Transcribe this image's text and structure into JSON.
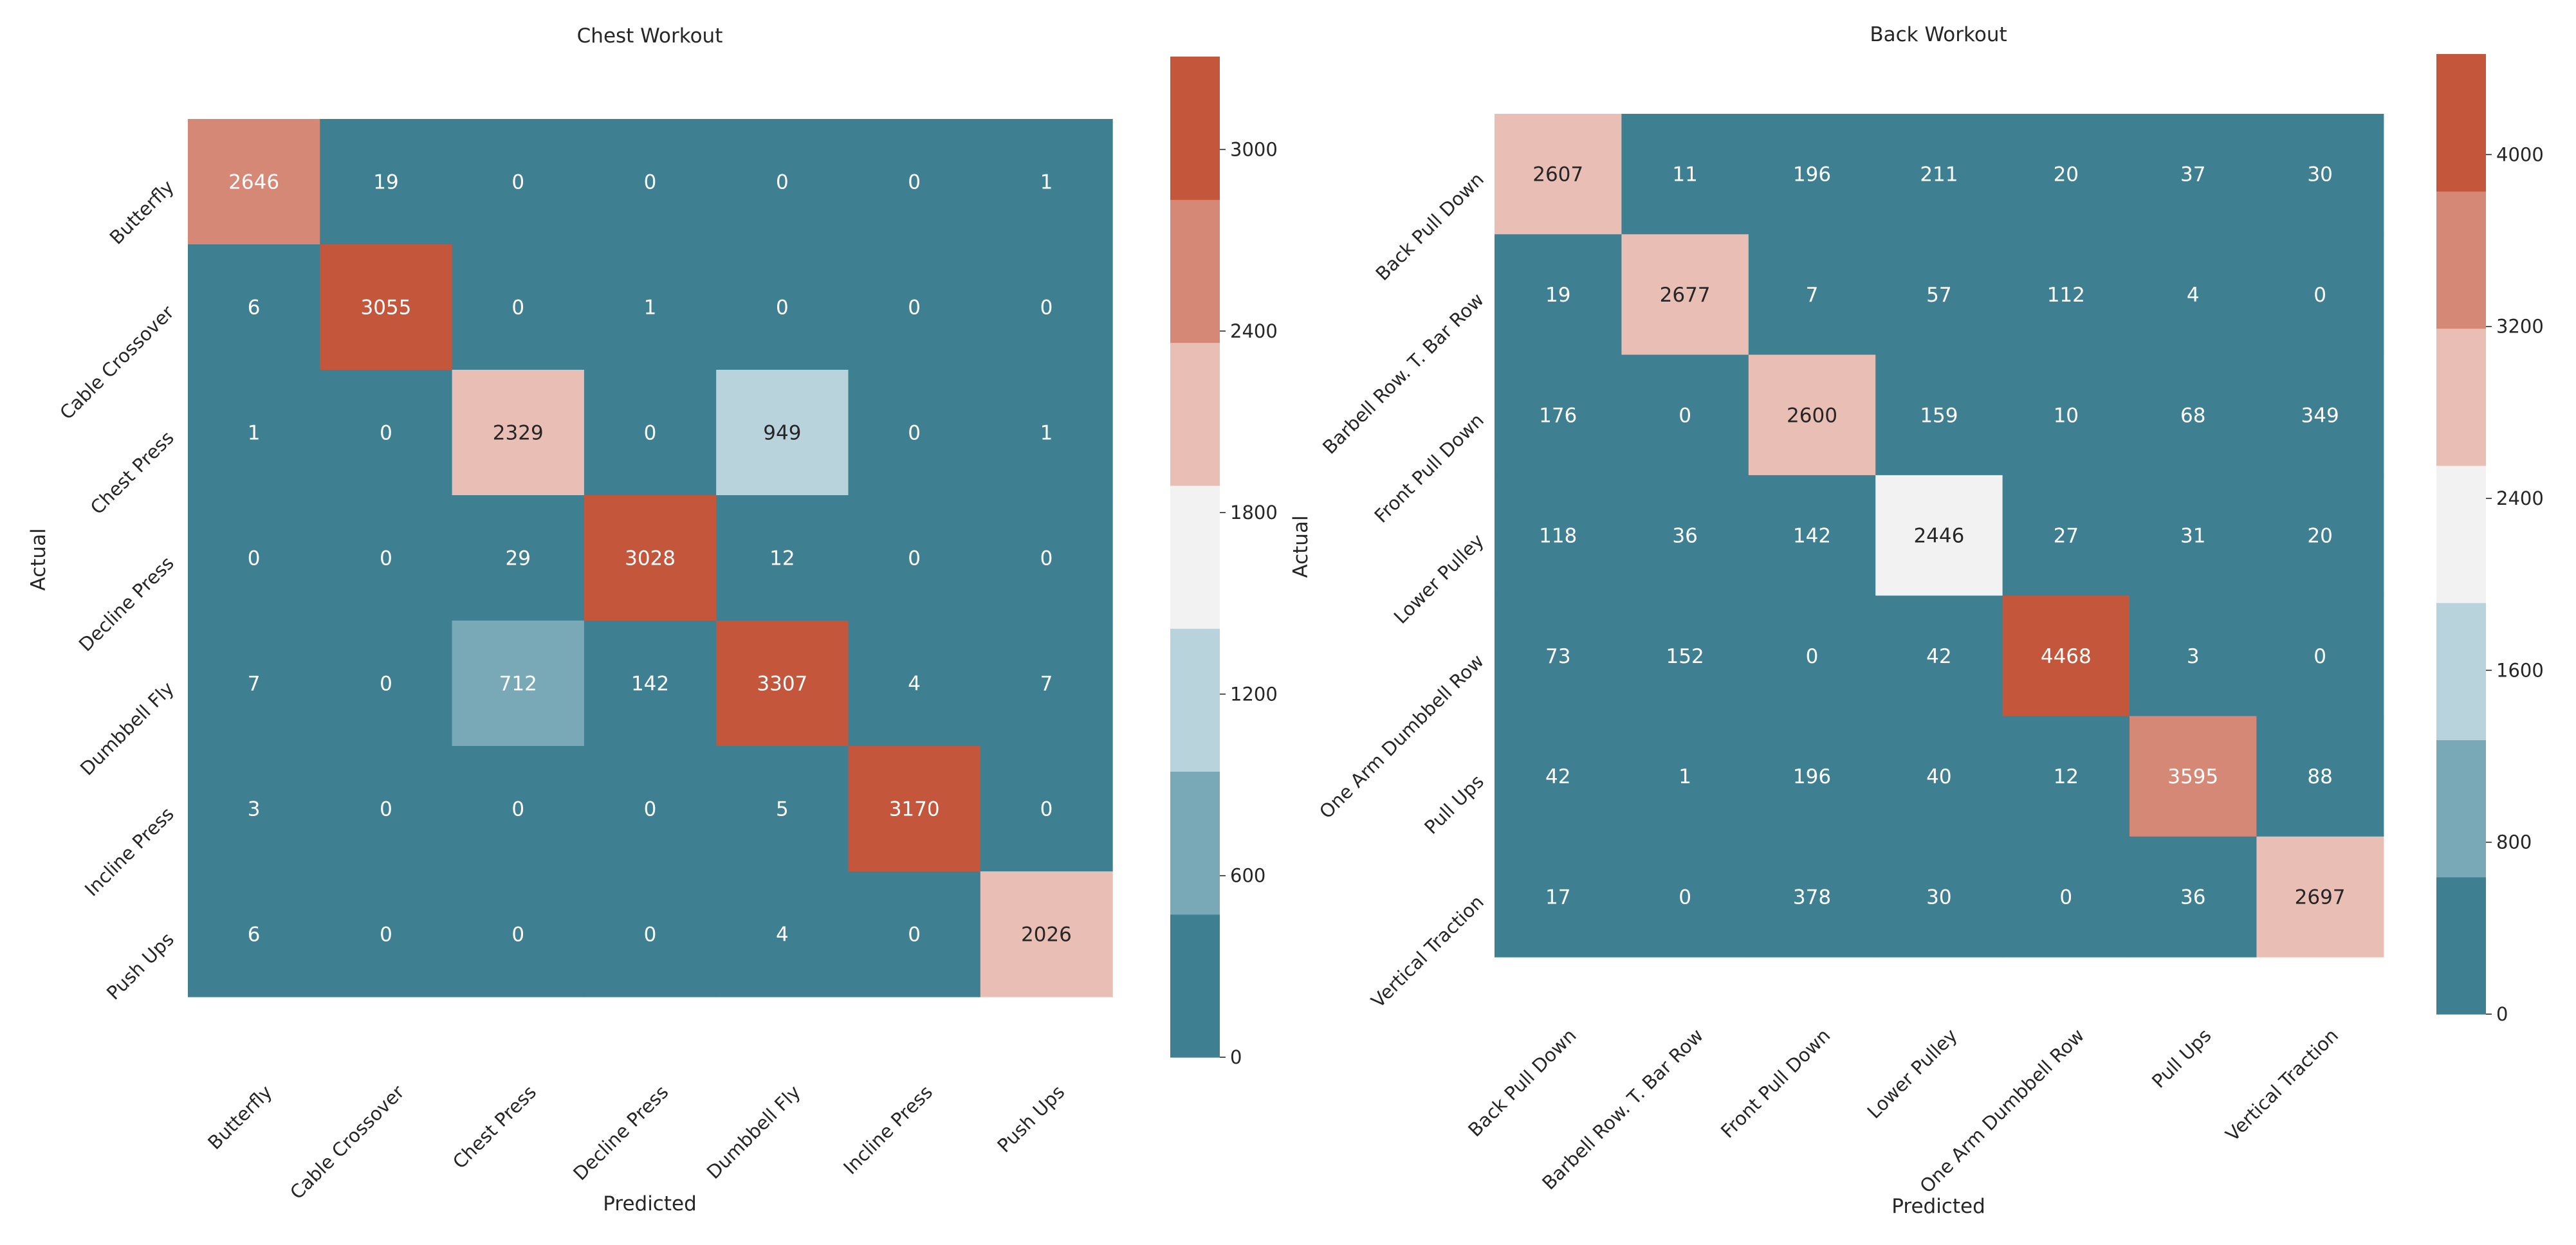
{
  "chart_data": [
    {
      "type": "heatmap",
      "title": "Chest Workout",
      "xlabel": "Predicted",
      "ylabel": "Actual",
      "categories": [
        "Butterfly",
        "Cable Crossover",
        "Chest Press",
        "Decline Press",
        "Dumbbell Fly",
        "Incline Press",
        "Push Ups"
      ],
      "values": [
        [
          2646,
          19,
          0,
          0,
          0,
          0,
          1
        ],
        [
          6,
          3055,
          0,
          1,
          0,
          0,
          0
        ],
        [
          1,
          0,
          2329,
          0,
          949,
          0,
          1
        ],
        [
          0,
          0,
          29,
          3028,
          12,
          0,
          0
        ],
        [
          7,
          0,
          712,
          142,
          3307,
          4,
          7
        ],
        [
          3,
          0,
          0,
          0,
          5,
          3170,
          0
        ],
        [
          6,
          0,
          0,
          0,
          4,
          0,
          2026
        ]
      ],
      "colorbar": {
        "range": [
          0,
          3307
        ],
        "ticks": [
          0,
          600,
          1200,
          1800,
          2400,
          3000
        ],
        "tick_labels": [
          "0",
          "600",
          "1200",
          "1800",
          "2400",
          "3000"
        ]
      },
      "grid": false
    },
    {
      "type": "heatmap",
      "title": "Back Workout",
      "xlabel": "Predicted",
      "ylabel": "Actual",
      "categories": [
        "Back Pull Down",
        "Barbell Row. T. Bar Row",
        "Front Pull Down",
        "Lower Pulley",
        "One Arm Dumbbell Row",
        "Pull Ups",
        "Vertical Traction"
      ],
      "values": [
        [
          2607,
          11,
          196,
          211,
          20,
          37,
          30
        ],
        [
          19,
          2677,
          7,
          57,
          112,
          4,
          0
        ],
        [
          176,
          0,
          2600,
          159,
          10,
          68,
          349
        ],
        [
          118,
          36,
          142,
          2446,
          27,
          31,
          20
        ],
        [
          73,
          152,
          0,
          42,
          4468,
          3,
          0
        ],
        [
          42,
          1,
          196,
          40,
          12,
          3595,
          88
        ],
        [
          17,
          0,
          378,
          30,
          0,
          36,
          2697
        ]
      ],
      "colorbar": {
        "range": [
          0,
          4468
        ],
        "ticks": [
          0,
          800,
          1600,
          2400,
          3200,
          4000
        ],
        "tick_labels": [
          "0",
          "800",
          "1600",
          "2400",
          "3200",
          "4000"
        ]
      },
      "grid": false
    }
  ],
  "colors": {
    "palette": [
      "#3f7f92",
      "#79a8b7",
      "#b9d3dc",
      "#f2f2f2",
      "#e9bfb5",
      "#d68876",
      "#c4563c"
    ],
    "text_light": "#ffffff",
    "text_dark": "#262626",
    "axis_text": "#262626"
  }
}
